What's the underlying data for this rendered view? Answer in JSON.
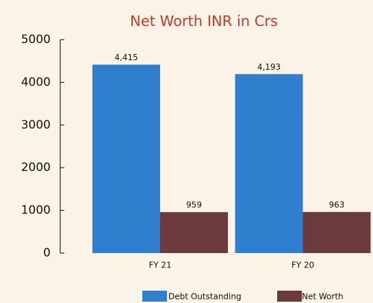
{
  "chart_data": {
    "type": "bar",
    "title": "Net Worth INR in Crs",
    "categories": [
      "FY 21",
      "FY 20"
    ],
    "series": [
      {
        "name": "Debt Outstanding",
        "color": "#2f7fcf",
        "values": [
          4415,
          4193
        ],
        "value_labels": [
          "4,415",
          "4,193"
        ]
      },
      {
        "name": "Net Worth",
        "color": "#6b3a3e",
        "values": [
          959,
          963
        ]
      }
    ],
    "ylim": [
      0,
      5000
    ],
    "yticks": [
      0,
      1000,
      2000,
      3000,
      4000,
      5000
    ]
  }
}
